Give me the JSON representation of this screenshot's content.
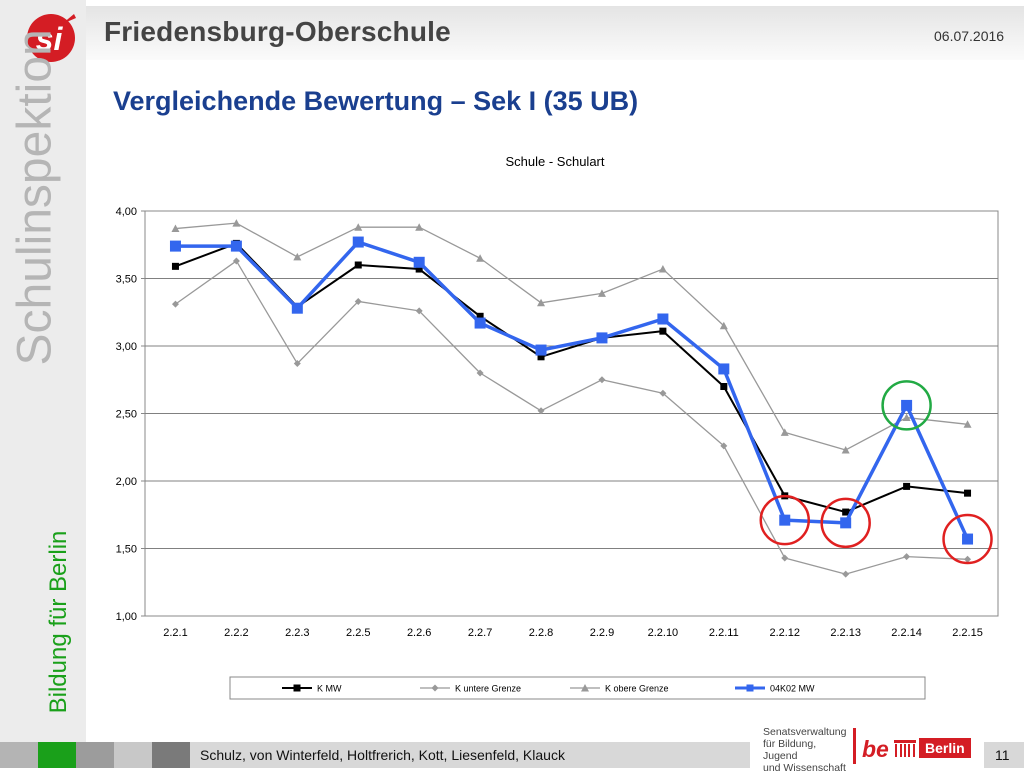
{
  "header": {
    "school": "Friedensburg-Oberschule",
    "date": "06.07.2016",
    "slide_title": "Vergleichende Bewertung – Sek I (35 UB)"
  },
  "sidebar": {
    "vertical_title": "Schulinspektion",
    "tagline": "Bildung für Berlin"
  },
  "logo": {
    "text": "si"
  },
  "footer": {
    "authors": "Schulz, von Winterfeld, Holtfrerich, Kott, Liesenfeld, Klauck",
    "page": "11",
    "sender_lines": [
      "Senatsverwaltung",
      "für Bildung, Jugend",
      "und Wissenschaft"
    ],
    "be": "be",
    "berlin": "Berlin"
  },
  "colors": {
    "accent_blue": "#3366ee",
    "title_blue": "#1a3f8f",
    "green": "#1aa01a",
    "red": "#e02020",
    "highlight_green": "#22aa44",
    "gray_line": "#999999",
    "mw_black": "#000000"
  },
  "chart_data": {
    "type": "line",
    "title": "Schule - Schulart",
    "categories": [
      "2.2.1",
      "2.2.2",
      "2.2.3",
      "2.2.5",
      "2.2.6",
      "2.2.7",
      "2.2.8",
      "2.2.9",
      "2.2.10",
      "2.2.11",
      "2.2.12",
      "2.2.13",
      "2.2.14",
      "2.2.15"
    ],
    "ylim": [
      1.0,
      4.0
    ],
    "yticks": [
      1.0,
      1.5,
      2.0,
      2.5,
      3.0,
      3.5,
      4.0
    ],
    "ytick_labels": [
      "1,00",
      "1,50",
      "2,00",
      "2,50",
      "3,00",
      "3,50",
      "4,00"
    ],
    "grid": true,
    "legend": "bottom",
    "series": [
      {
        "name": "K MW",
        "color": "#000000",
        "marker": "square",
        "width": 2,
        "values": [
          3.59,
          3.76,
          3.29,
          3.6,
          3.57,
          3.22,
          2.92,
          3.06,
          3.11,
          2.7,
          1.89,
          1.77,
          1.96,
          1.91
        ]
      },
      {
        "name": "K untere Grenze",
        "color": "#999999",
        "marker": "diamond",
        "width": 1.3,
        "values": [
          3.31,
          3.63,
          2.87,
          3.33,
          3.26,
          2.8,
          2.52,
          2.75,
          2.65,
          2.26,
          1.43,
          1.31,
          1.44,
          1.42
        ]
      },
      {
        "name": "K obere Grenze",
        "color": "#999999",
        "marker": "triangle",
        "width": 1.3,
        "values": [
          3.87,
          3.91,
          3.66,
          3.88,
          3.88,
          3.65,
          3.32,
          3.39,
          3.57,
          3.15,
          2.36,
          2.23,
          2.47,
          2.42
        ]
      },
      {
        "name": "04K02 MW",
        "color": "#3366ee",
        "marker": "square-big",
        "width": 3.5,
        "values": [
          3.74,
          3.74,
          3.28,
          3.77,
          3.62,
          3.17,
          2.97,
          3.06,
          3.2,
          2.83,
          1.71,
          1.69,
          2.56,
          1.57
        ]
      }
    ],
    "highlights": [
      {
        "category": "2.2.12",
        "color": "#e02020"
      },
      {
        "category": "2.2.13",
        "color": "#e02020"
      },
      {
        "category": "2.2.14",
        "color": "#22aa44"
      },
      {
        "category": "2.2.15",
        "color": "#e02020"
      }
    ]
  }
}
